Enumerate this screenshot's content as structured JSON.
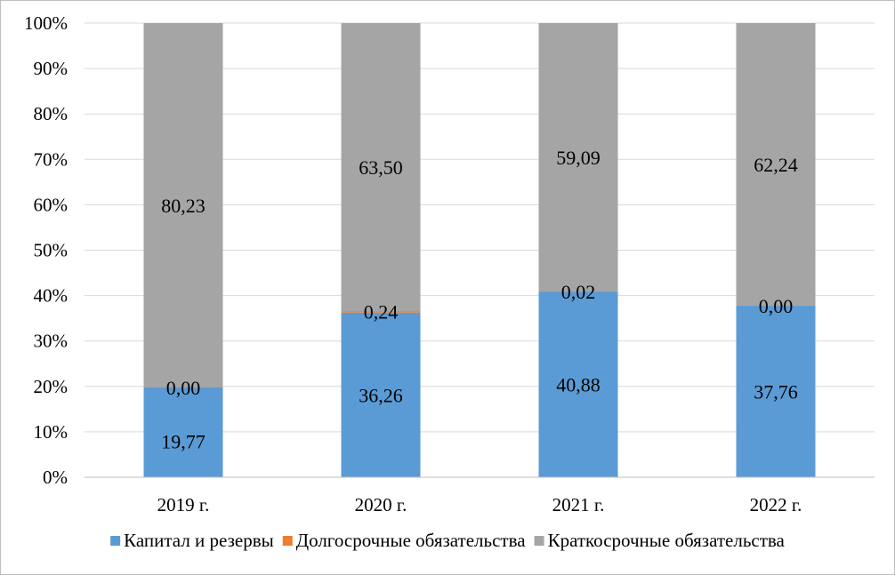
{
  "chart_data": {
    "type": "bar",
    "stacked": true,
    "percent_stacked": true,
    "categories": [
      "2019 г.",
      "2020 г.",
      "2021 г.",
      "2022 г."
    ],
    "series": [
      {
        "name": "Капитал и резервы",
        "values": [
          19.77,
          36.26,
          40.88,
          37.76
        ],
        "labels": [
          "19,77",
          "36,26",
          "40,88",
          "37,76"
        ],
        "color": "#5b9bd5"
      },
      {
        "name": "Долгосрочные обязательства",
        "values": [
          0.0,
          0.24,
          0.02,
          0.0
        ],
        "labels": [
          "0,00",
          "0,24",
          "0,02",
          "0,00"
        ],
        "color": "#ed7d31"
      },
      {
        "name": "Краткосрочные обязательства",
        "values": [
          80.23,
          63.5,
          59.09,
          62.24
        ],
        "labels": [
          "80,23",
          "63,50",
          "59,09",
          "62,24"
        ],
        "color": "#a5a5a5"
      }
    ],
    "yticks": [
      "0%",
      "10%",
      "20%",
      "30%",
      "40%",
      "50%",
      "60%",
      "70%",
      "80%",
      "90%",
      "100%"
    ],
    "ylim": [
      0,
      100
    ],
    "grid": true,
    "gridline_color": "#d9d9d9",
    "legend_position": "bottom"
  }
}
